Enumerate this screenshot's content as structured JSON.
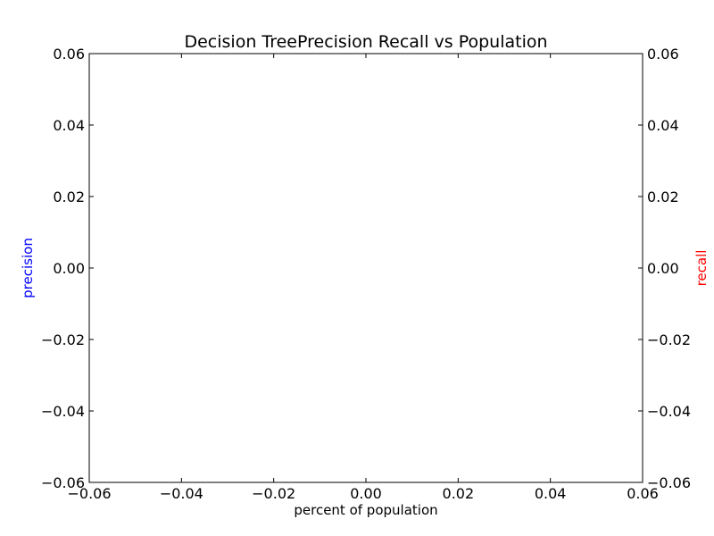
{
  "chart_data": {
    "type": "line",
    "title": "Decision TreePrecision Recall vs Population",
    "xlabel": "percent of population",
    "ylabel_left": "precision",
    "ylabel_right": "recall",
    "xlim": [
      -0.06,
      0.06
    ],
    "ylim_left": [
      -0.06,
      0.06
    ],
    "ylim_right": [
      -0.06,
      0.06
    ],
    "x_ticks": [
      "−0.06",
      "−0.04",
      "−0.02",
      "0.00",
      "0.02",
      "0.04",
      "0.06"
    ],
    "y_ticks_left": [
      "−0.06",
      "−0.04",
      "−0.02",
      "0.00",
      "0.02",
      "0.04",
      "0.06"
    ],
    "y_ticks_right": [
      "−0.06",
      "−0.04",
      "−0.02",
      "0.00",
      "0.02",
      "0.04",
      "0.06"
    ],
    "grid": false,
    "series": [],
    "colors": {
      "precision": "#0000ff",
      "recall": "#ff0000",
      "axes": "#000000"
    }
  }
}
